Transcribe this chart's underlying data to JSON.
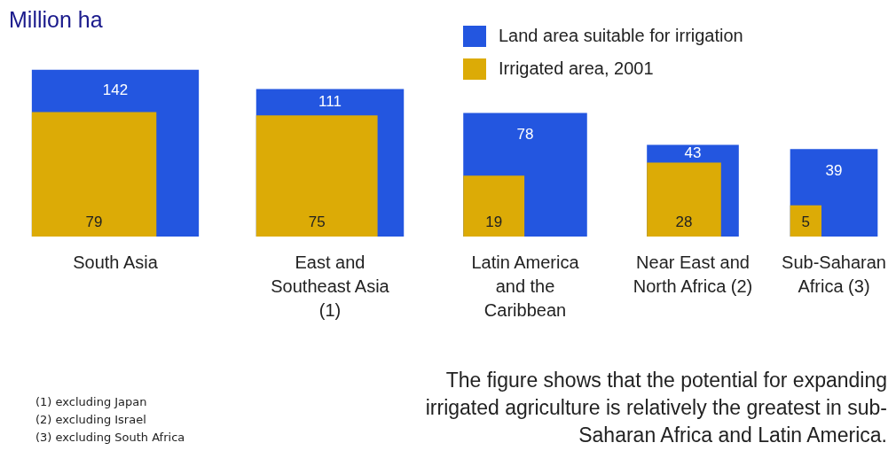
{
  "chart_data": {
    "type": "other",
    "title": "Million ha",
    "categories": [
      "South Asia",
      "East and Southeast Asia (1)",
      "Latin America and the Caribbean",
      "Near East and North Africa (2)",
      "Sub-Saharan Africa (3)"
    ],
    "series": [
      {
        "name": "Land area suitable for irrigation",
        "color": "#2356e0",
        "values": [
          142,
          111,
          78,
          43,
          39
        ]
      },
      {
        "name": "Irrigated area, 2001",
        "color": "#dcab06",
        "values": [
          79,
          75,
          19,
          28,
          5
        ]
      }
    ],
    "data_labels": true,
    "legend": "top right",
    "annotations": [
      "(1) excluding Japan",
      "(2) excluding Israel",
      "(3) excluding South Africa",
      "The figure shows that the potential for expanding irrigated agriculture is relatively the greatest in sub-Saharan Africa and Latin America."
    ]
  }
}
